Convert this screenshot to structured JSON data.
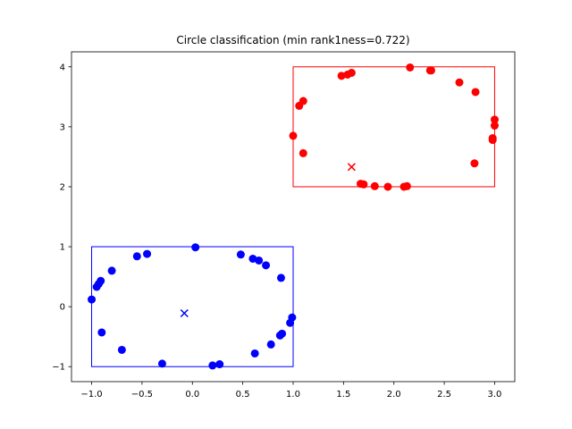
{
  "chart_data": {
    "type": "scatter",
    "title": "Circle classification (min rank1ness=0.722)",
    "xlabel": "",
    "ylabel": "",
    "xlim": [
      -1.2,
      3.2
    ],
    "ylim": [
      -1.25,
      4.25
    ],
    "xticks": [
      -1.0,
      -0.5,
      0.0,
      0.5,
      1.0,
      1.5,
      2.0,
      2.5,
      3.0
    ],
    "xtick_labels": [
      "−1.0",
      "−0.5",
      "0.0",
      "0.5",
      "1.0",
      "1.5",
      "2.0",
      "2.5",
      "3.0"
    ],
    "yticks": [
      -1,
      0,
      1,
      2,
      3,
      4
    ],
    "ytick_labels": [
      "−1",
      "0",
      "1",
      "2",
      "3",
      "4"
    ],
    "grid": false,
    "series": [
      {
        "color": "#0000ff",
        "marker": "circle",
        "x": [
          -1.0,
          -0.95,
          -0.93,
          -0.91,
          -0.9,
          -0.8,
          -0.7,
          -0.55,
          -0.45,
          -0.3,
          0.03,
          0.2,
          0.27,
          0.48,
          0.6,
          0.62,
          0.66,
          0.73,
          0.78,
          0.87,
          0.88,
          0.89,
          0.97,
          0.99
        ],
        "y": [
          0.12,
          0.33,
          0.38,
          0.43,
          -0.43,
          0.6,
          -0.72,
          0.84,
          0.88,
          -0.95,
          0.99,
          -0.98,
          -0.96,
          0.87,
          0.8,
          -0.78,
          0.77,
          0.69,
          -0.63,
          -0.48,
          0.48,
          -0.45,
          -0.27,
          -0.18
        ]
      },
      {
        "color": "#ff0000",
        "marker": "circle",
        "x": [
          1.0,
          1.06,
          1.1,
          1.1,
          1.48,
          1.54,
          1.58,
          1.67,
          1.7,
          1.81,
          1.94,
          2.1,
          2.13,
          2.16,
          2.36,
          2.37,
          2.65,
          2.8,
          2.81,
          2.98,
          2.98,
          3.0,
          3.0
        ],
        "y": [
          2.85,
          3.35,
          3.43,
          2.56,
          3.85,
          3.87,
          3.9,
          2.05,
          2.04,
          2.01,
          2.0,
          2.0,
          2.01,
          3.99,
          3.94,
          3.94,
          3.74,
          2.39,
          3.58,
          2.78,
          2.81,
          3.02,
          3.12
        ]
      }
    ],
    "centers": [
      {
        "x": -0.08,
        "y": -0.11,
        "color": "#0000ff",
        "marker": "x"
      },
      {
        "x": 1.58,
        "y": 2.33,
        "color": "#ff0000",
        "marker": "x"
      }
    ],
    "rectangles": [
      {
        "x0": -1.0,
        "y0": -1.0,
        "x1": 1.0,
        "y1": 1.0,
        "color": "#0000ff"
      },
      {
        "x0": 1.0,
        "y0": 2.0,
        "x1": 3.0,
        "y1": 4.0,
        "color": "#ff0000"
      }
    ]
  }
}
